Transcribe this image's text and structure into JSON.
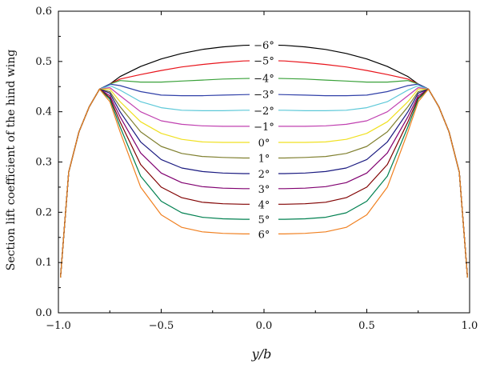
{
  "chart_data": {
    "type": "line",
    "xlabel": "y/b",
    "ylabel": "Section lift coefficient of the hind wing",
    "xlim": [
      -1.0,
      1.0
    ],
    "ylim": [
      0.0,
      0.6
    ],
    "x_ticks": [
      "−1.0",
      "−0.5",
      "0.0",
      "0.5",
      "1.0"
    ],
    "y_ticks": [
      "0.0",
      "0.1",
      "0.2",
      "0.3",
      "0.4",
      "0.5",
      "0.6"
    ],
    "grid": false,
    "x": [
      -0.99,
      -0.95,
      -0.9,
      -0.85,
      -0.8,
      -0.75,
      -0.7,
      -0.6,
      -0.5,
      -0.4,
      -0.3,
      -0.2,
      -0.1,
      0.0,
      0.1,
      0.2,
      0.3,
      0.4,
      0.5,
      0.6,
      0.7,
      0.75,
      0.8,
      0.85,
      0.9,
      0.95,
      0.99
    ],
    "series": [
      {
        "name": "−6°",
        "color": "#000000",
        "values": [
          0.07,
          0.28,
          0.36,
          0.41,
          0.445,
          0.455,
          0.47,
          0.49,
          0.505,
          0.516,
          0.524,
          0.529,
          0.532,
          0.533,
          0.532,
          0.529,
          0.524,
          0.516,
          0.505,
          0.49,
          0.47,
          0.455,
          0.445,
          0.41,
          0.36,
          0.28,
          0.07
        ]
      },
      {
        "name": "−5°",
        "color": "#e8141b",
        "values": [
          0.07,
          0.28,
          0.36,
          0.41,
          0.445,
          0.455,
          0.465,
          0.474,
          0.482,
          0.489,
          0.494,
          0.498,
          0.501,
          0.502,
          0.501,
          0.498,
          0.494,
          0.489,
          0.482,
          0.474,
          0.465,
          0.455,
          0.445,
          0.41,
          0.36,
          0.28,
          0.07
        ]
      },
      {
        "name": "−4°",
        "color": "#3aa13a",
        "values": [
          0.07,
          0.28,
          0.36,
          0.41,
          0.445,
          0.455,
          0.462,
          0.459,
          0.459,
          0.461,
          0.463,
          0.465,
          0.466,
          0.467,
          0.466,
          0.465,
          0.463,
          0.461,
          0.459,
          0.459,
          0.462,
          0.455,
          0.445,
          0.41,
          0.36,
          0.28,
          0.07
        ]
      },
      {
        "name": "−3°",
        "color": "#3040a8",
        "values": [
          0.07,
          0.28,
          0.36,
          0.41,
          0.445,
          0.455,
          0.452,
          0.44,
          0.433,
          0.432,
          0.432,
          0.433,
          0.434,
          0.435,
          0.434,
          0.433,
          0.432,
          0.432,
          0.433,
          0.44,
          0.452,
          0.455,
          0.445,
          0.41,
          0.36,
          0.28,
          0.07
        ]
      },
      {
        "name": "−2°",
        "color": "#5cc8d8",
        "values": [
          0.07,
          0.28,
          0.36,
          0.41,
          0.445,
          0.452,
          0.443,
          0.42,
          0.408,
          0.403,
          0.402,
          0.402,
          0.403,
          0.403,
          0.403,
          0.402,
          0.402,
          0.403,
          0.408,
          0.42,
          0.443,
          0.452,
          0.445,
          0.41,
          0.36,
          0.28,
          0.07
        ]
      },
      {
        "name": "−1°",
        "color": "#c040b0",
        "values": [
          0.07,
          0.28,
          0.36,
          0.41,
          0.445,
          0.448,
          0.432,
          0.4,
          0.382,
          0.375,
          0.372,
          0.371,
          0.371,
          0.371,
          0.371,
          0.371,
          0.372,
          0.375,
          0.382,
          0.4,
          0.432,
          0.448,
          0.445,
          0.41,
          0.36,
          0.28,
          0.07
        ]
      },
      {
        "name": "0°",
        "color": "#f0e020",
        "values": [
          0.07,
          0.28,
          0.36,
          0.41,
          0.445,
          0.445,
          0.42,
          0.38,
          0.357,
          0.345,
          0.34,
          0.339,
          0.339,
          0.339,
          0.339,
          0.339,
          0.34,
          0.345,
          0.357,
          0.38,
          0.42,
          0.445,
          0.445,
          0.41,
          0.36,
          0.28,
          0.07
        ]
      },
      {
        "name": "1°",
        "color": "#808030",
        "values": [
          0.07,
          0.28,
          0.36,
          0.41,
          0.445,
          0.44,
          0.41,
          0.36,
          0.331,
          0.317,
          0.311,
          0.309,
          0.308,
          0.308,
          0.308,
          0.309,
          0.311,
          0.317,
          0.331,
          0.36,
          0.41,
          0.44,
          0.445,
          0.41,
          0.36,
          0.28,
          0.07
        ]
      },
      {
        "name": "2°",
        "color": "#1a1a80",
        "values": [
          0.07,
          0.28,
          0.36,
          0.41,
          0.445,
          0.437,
          0.4,
          0.34,
          0.305,
          0.288,
          0.281,
          0.278,
          0.277,
          0.277,
          0.277,
          0.278,
          0.281,
          0.288,
          0.305,
          0.34,
          0.4,
          0.437,
          0.445,
          0.41,
          0.36,
          0.28,
          0.07
        ]
      },
      {
        "name": "3°",
        "color": "#800070",
        "values": [
          0.07,
          0.28,
          0.36,
          0.41,
          0.445,
          0.432,
          0.39,
          0.318,
          0.278,
          0.259,
          0.251,
          0.248,
          0.247,
          0.247,
          0.247,
          0.248,
          0.251,
          0.259,
          0.278,
          0.318,
          0.39,
          0.432,
          0.445,
          0.41,
          0.36,
          0.28,
          0.07
        ]
      },
      {
        "name": "4°",
        "color": "#800000",
        "values": [
          0.07,
          0.28,
          0.36,
          0.41,
          0.445,
          0.428,
          0.38,
          0.295,
          0.25,
          0.229,
          0.22,
          0.217,
          0.216,
          0.216,
          0.216,
          0.217,
          0.22,
          0.229,
          0.25,
          0.295,
          0.38,
          0.428,
          0.445,
          0.41,
          0.36,
          0.28,
          0.07
        ]
      },
      {
        "name": "5°",
        "color": "#008050",
        "values": [
          0.07,
          0.28,
          0.36,
          0.41,
          0.445,
          0.425,
          0.37,
          0.272,
          0.222,
          0.199,
          0.19,
          0.187,
          0.186,
          0.186,
          0.186,
          0.187,
          0.19,
          0.199,
          0.222,
          0.272,
          0.37,
          0.425,
          0.445,
          0.41,
          0.36,
          0.28,
          0.07
        ]
      },
      {
        "name": "6°",
        "color": "#f08020",
        "values": [
          0.07,
          0.28,
          0.36,
          0.41,
          0.445,
          0.42,
          0.36,
          0.25,
          0.195,
          0.17,
          0.161,
          0.158,
          0.157,
          0.157,
          0.157,
          0.158,
          0.161,
          0.17,
          0.195,
          0.25,
          0.36,
          0.42,
          0.445,
          0.41,
          0.36,
          0.28,
          0.07
        ]
      }
    ]
  }
}
